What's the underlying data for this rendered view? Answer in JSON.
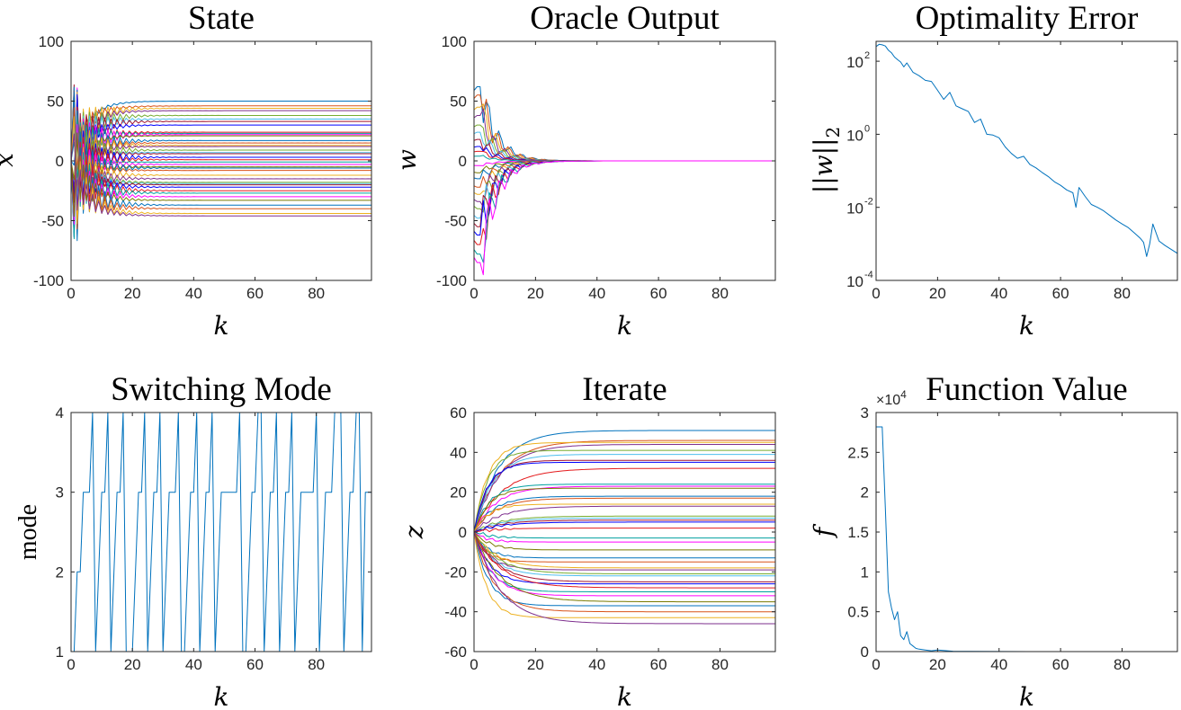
{
  "colors": {
    "series_palette": [
      "#0072BD",
      "#D95319",
      "#EDB120",
      "#7E2F8E",
      "#77AC30",
      "#4DBEEE",
      "#A2142F",
      "#0000FF",
      "#E41A1C",
      "#00A0A0",
      "#FF00FF",
      "#7A7A00"
    ],
    "axis": "#262626"
  },
  "chart_data": [
    {
      "id": "state",
      "type": "line",
      "title": "State",
      "xlabel": "k",
      "ylabel": "x",
      "xlim": [
        0,
        98
      ],
      "ylim": [
        -100,
        100
      ],
      "xticks": [
        0,
        20,
        40,
        60,
        80
      ],
      "yticks": [
        -100,
        -50,
        0,
        50,
        100
      ],
      "series_finals": [
        50,
        46,
        44,
        42,
        38,
        35,
        33,
        30,
        24,
        23,
        22,
        21,
        17,
        15,
        13,
        12,
        9,
        7,
        6,
        3,
        1,
        -1,
        -3,
        -5,
        -6,
        -8,
        -12,
        -15,
        -18,
        -19,
        -20,
        -22,
        -25,
        -27,
        -30,
        -33,
        -37,
        -40,
        -44,
        -46
      ],
      "note": "many overlapping oscillating trajectories converging to constant values"
    },
    {
      "id": "oracle",
      "type": "line",
      "title": "Oracle Output",
      "xlabel": "k",
      "ylabel": "w",
      "xlim": [
        0,
        98
      ],
      "ylim": [
        -100,
        100
      ],
      "xticks": [
        0,
        20,
        40,
        60,
        80
      ],
      "yticks": [
        -100,
        -50,
        0,
        50,
        100
      ],
      "series_initials": [
        62,
        55,
        45,
        38,
        30,
        24,
        18,
        12,
        8,
        4,
        -4,
        -10,
        -15,
        -22,
        -28,
        -34,
        -40,
        -48,
        -55,
        -62,
        -70,
        -78,
        -85
      ],
      "note": "trajectories decay to 0 by about k = 40"
    },
    {
      "id": "opt_error",
      "type": "line",
      "title": "Optimality Error",
      "xlabel": "k",
      "ylabel": "||w||",
      "ylabel_sub": "2",
      "yscale": "log",
      "xlim": [
        0,
        98
      ],
      "ylim": [
        0.0001,
        350
      ],
      "xticks": [
        0,
        20,
        40,
        60,
        80
      ],
      "yticks": [
        {
          "base": "10",
          "exp": "2",
          "value": 100
        },
        {
          "base": "10",
          "exp": "0",
          "value": 1
        },
        {
          "base": "10",
          "exp": "-2",
          "value": 0.01
        },
        {
          "base": "10",
          "exp": "-4",
          "value": 0.0001
        }
      ],
      "x": [
        0,
        1,
        2,
        3,
        4,
        5,
        6,
        7,
        8,
        9,
        10,
        12,
        14,
        16,
        18,
        20,
        22,
        24,
        26,
        28,
        30,
        32,
        34,
        36,
        38,
        40,
        42,
        44,
        46,
        48,
        50,
        52,
        54,
        56,
        58,
        60,
        62,
        64,
        65,
        66,
        68,
        70,
        72,
        74,
        76,
        78,
        80,
        82,
        84,
        86,
        87,
        88,
        89,
        90,
        92,
        94,
        96,
        98
      ],
      "y": [
        250,
        290,
        280,
        260,
        200,
        170,
        130,
        110,
        95,
        70,
        90,
        50,
        40,
        30,
        28,
        16,
        9,
        14,
        6,
        5,
        4.2,
        2.1,
        2.6,
        1.0,
        0.95,
        0.8,
        0.45,
        0.3,
        0.22,
        0.25,
        0.15,
        0.12,
        0.09,
        0.07,
        0.05,
        0.04,
        0.03,
        0.025,
        0.01,
        0.035,
        0.02,
        0.012,
        0.01,
        0.008,
        0.006,
        0.0045,
        0.0035,
        0.0028,
        0.002,
        0.0014,
        0.0011,
        0.00045,
        0.001,
        0.0035,
        0.0012,
        0.0009,
        0.0007,
        0.00055
      ]
    },
    {
      "id": "mode",
      "type": "line",
      "title": "Switching Mode",
      "xlabel": "k",
      "ylabel": "mode",
      "xlim": [
        0,
        98
      ],
      "ylim": [
        1,
        4
      ],
      "xticks": [
        0,
        20,
        40,
        60,
        80
      ],
      "yticks": [
        1,
        2,
        3,
        4
      ],
      "x": [
        0,
        1,
        2,
        3,
        4,
        5,
        6,
        7,
        8,
        9,
        10,
        11,
        12,
        13,
        14,
        15,
        16,
        17,
        18,
        19,
        20,
        21,
        22,
        23,
        24,
        25,
        26,
        27,
        28,
        29,
        30,
        31,
        32,
        33,
        34,
        35,
        36,
        37,
        38,
        39,
        40,
        41,
        42,
        43,
        44,
        45,
        46,
        47,
        48,
        49,
        50,
        51,
        52,
        53,
        54,
        55,
        56,
        57,
        58,
        59,
        60,
        61,
        62,
        63,
        64,
        65,
        66,
        67,
        68,
        69,
        70,
        71,
        72,
        73,
        74,
        75,
        76,
        77,
        78,
        79,
        80,
        81,
        82,
        83,
        84,
        85,
        86,
        87,
        88,
        89,
        90,
        91,
        92,
        93,
        94,
        95,
        96,
        97,
        98
      ],
      "values": [
        1,
        1,
        2,
        2,
        3,
        3,
        3,
        4,
        1,
        2,
        3,
        3,
        4,
        1,
        2,
        3,
        3,
        4,
        1,
        1,
        1,
        2,
        3,
        3,
        4,
        1,
        2,
        3,
        3,
        4,
        1,
        2,
        3,
        3,
        3,
        4,
        1,
        1,
        2,
        3,
        3,
        4,
        1,
        2,
        3,
        3,
        4,
        1,
        2,
        3,
        3,
        3,
        3,
        3,
        3,
        4,
        1,
        1,
        2,
        3,
        3,
        4,
        4,
        1,
        2,
        3,
        3,
        4,
        1,
        2,
        3,
        3,
        4,
        1,
        2,
        3,
        3,
        3,
        3,
        3,
        4,
        1,
        2,
        3,
        3,
        3,
        4,
        4,
        4,
        1,
        2,
        3,
        3,
        4,
        4,
        1,
        3,
        3,
        3
      ]
    },
    {
      "id": "iterate",
      "type": "line",
      "title": "Iterate",
      "xlabel": "k",
      "ylabel": "z",
      "xlim": [
        0,
        98
      ],
      "ylim": [
        -60,
        60
      ],
      "xticks": [
        0,
        20,
        40,
        60,
        80
      ],
      "yticks": [
        -60,
        -40,
        -20,
        0,
        20,
        40,
        60
      ],
      "series_finals": [
        51,
        46,
        45,
        44,
        41,
        39,
        36,
        35,
        32,
        24,
        23,
        22,
        18,
        17,
        14,
        13,
        8,
        7,
        6,
        5,
        2,
        -3,
        -5,
        -9,
        -13,
        -15,
        -18,
        -19,
        -21,
        -22,
        -25,
        -26,
        -28,
        -30,
        -32,
        -35,
        -37,
        -40,
        -43,
        -46
      ],
      "note": "smooth trajectories starting at 0 and saturating to constant values"
    },
    {
      "id": "function_value",
      "type": "line",
      "title": "Function Value",
      "xlabel": "k",
      "ylabel": "f",
      "exponent_note": "×10",
      "exponent_sup": "4",
      "xlim": [
        0,
        98
      ],
      "ylim": [
        0,
        3
      ],
      "xticks": [
        0,
        20,
        40,
        60,
        80
      ],
      "yticks": [
        0,
        0.5,
        1,
        1.5,
        2,
        2.5,
        3
      ],
      "x": [
        0,
        1,
        2,
        3,
        4,
        5,
        6,
        7,
        8,
        9,
        10,
        11,
        12,
        13,
        14,
        16,
        18,
        20,
        25,
        30,
        40,
        60,
        80,
        98
      ],
      "values": [
        2.82,
        2.82,
        2.82,
        1.8,
        0.75,
        0.55,
        0.4,
        0.5,
        0.2,
        0.15,
        0.25,
        0.1,
        0.07,
        0.04,
        0.03,
        0.02,
        0.01,
        0.02,
        0.005,
        0.002,
        0.001,
        0.0,
        0.0,
        0.0
      ]
    }
  ]
}
